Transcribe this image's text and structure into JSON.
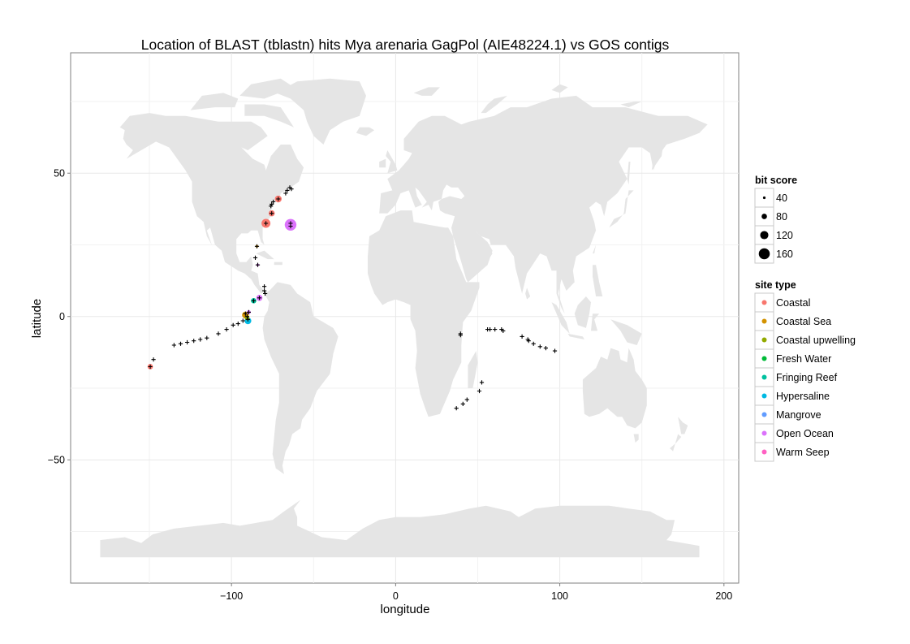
{
  "chart_data": {
    "type": "scatter",
    "title": "Location of BLAST (tblastn) hits Mya arenaria GagPol (AIE48224.1) vs GOS contigs",
    "xlabel": "longitude",
    "ylabel": "latitude",
    "xlim": [
      -198,
      209
    ],
    "ylim": [
      -93,
      92
    ],
    "x_ticks": [
      -100,
      0,
      100,
      200
    ],
    "x_tick_labels": [
      "−100",
      "0",
      "100",
      "200"
    ],
    "y_ticks": [
      -50,
      0,
      50
    ],
    "y_tick_labels": [
      "−50",
      "0",
      "50"
    ],
    "grid": true,
    "background_map": "world",
    "legend_position": "right",
    "size_legend": {
      "title": "bit score",
      "values": [
        40,
        80,
        120,
        160
      ]
    },
    "color_legend": {
      "title": "site type",
      "entries": [
        {
          "label": "Coastal",
          "color": "#F8766D"
        },
        {
          "label": "Coastal Sea",
          "color": "#D39200"
        },
        {
          "label": "Coastal upwelling",
          "color": "#93AA00"
        },
        {
          "label": "Fresh Water",
          "color": "#00BA38"
        },
        {
          "label": "Fringing Reef",
          "color": "#00C19F"
        },
        {
          "label": "Hypersaline",
          "color": "#00B9E3"
        },
        {
          "label": "Mangrove",
          "color": "#619CFF"
        },
        {
          "label": "Open Ocean",
          "color": "#DB72FB"
        },
        {
          "label": "Warm Seep",
          "color": "#FF61C3"
        }
      ]
    },
    "hits": [
      {
        "lon": -79,
        "lat": 32.5,
        "site_type": "Coastal",
        "bit_score": 130
      },
      {
        "lon": -75.5,
        "lat": 36,
        "site_type": "Coastal",
        "bit_score": 90
      },
      {
        "lon": -71.5,
        "lat": 41,
        "site_type": "Coastal",
        "bit_score": 100
      },
      {
        "lon": -149.5,
        "lat": -17.5,
        "site_type": "Coastal",
        "bit_score": 80
      },
      {
        "lon": -64,
        "lat": 32,
        "site_type": "Open Ocean",
        "bit_score": 170
      },
      {
        "lon": -83,
        "lat": 6.5,
        "site_type": "Open Ocean",
        "bit_score": 90
      },
      {
        "lon": -84.5,
        "lat": 24.5,
        "site_type": "Coastal Sea",
        "bit_score": 40
      },
      {
        "lon": -91.5,
        "lat": 0.5,
        "site_type": "Coastal Sea",
        "bit_score": 100
      },
      {
        "lon": -90.5,
        "lat": -0.5,
        "site_type": "Coastal upwelling",
        "bit_score": 70
      },
      {
        "lon": -86.5,
        "lat": 5.5,
        "site_type": "Fringing Reef",
        "bit_score": 80
      },
      {
        "lon": -90,
        "lat": -1.5,
        "site_type": "Hypersaline",
        "bit_score": 100
      },
      {
        "lon": -89.5,
        "lat": 1.5,
        "site_type": "Open Ocean",
        "bit_score": 60
      },
      {
        "lon": -84,
        "lat": 18,
        "site_type": "Open Ocean",
        "bit_score": 40
      }
    ],
    "plus_markers": [
      [
        -76,
        38.5
      ],
      [
        -75.5,
        39.2
      ],
      [
        -74.5,
        40
      ],
      [
        -67,
        43
      ],
      [
        -66,
        44
      ],
      [
        -64.5,
        45
      ],
      [
        -63.5,
        44.5
      ],
      [
        -71.5,
        41
      ],
      [
        -79,
        32.5
      ],
      [
        -75.5,
        36
      ],
      [
        -64,
        31.5
      ],
      [
        -64,
        32.5
      ],
      [
        -84.5,
        24.5
      ],
      [
        -85.5,
        20.5
      ],
      [
        -84,
        18
      ],
      [
        -80,
        10.5
      ],
      [
        -80,
        9
      ],
      [
        -79.5,
        8
      ],
      [
        -83,
        6.5
      ],
      [
        -86.5,
        5.5
      ],
      [
        -89.5,
        1.5
      ],
      [
        -91.5,
        1
      ],
      [
        -90.5,
        0
      ],
      [
        -90,
        -1
      ],
      [
        -93,
        -1.5
      ],
      [
        -96,
        -2.5
      ],
      [
        -99,
        -3
      ],
      [
        -103,
        -4.5
      ],
      [
        -108,
        -6
      ],
      [
        -115,
        -7.5
      ],
      [
        -119,
        -8
      ],
      [
        -123,
        -8.5
      ],
      [
        -127,
        -9
      ],
      [
        -131,
        -9.5
      ],
      [
        -135,
        -10
      ],
      [
        -147.5,
        -15
      ],
      [
        -149.5,
        -17.5
      ],
      [
        39.5,
        -6
      ],
      [
        39.5,
        -6.5
      ],
      [
        56,
        -4.5
      ],
      [
        57.5,
        -4.5
      ],
      [
        60.5,
        -4.5
      ],
      [
        64.5,
        -4.5
      ],
      [
        65.5,
        -5
      ],
      [
        77,
        -7
      ],
      [
        80.5,
        -8
      ],
      [
        81,
        -8.5
      ],
      [
        84,
        -9.5
      ],
      [
        88,
        -10.5
      ],
      [
        91.5,
        -11
      ],
      [
        97,
        -12
      ],
      [
        52.5,
        -23
      ],
      [
        51,
        -26
      ],
      [
        43.5,
        -29
      ],
      [
        41,
        -30.5
      ],
      [
        37,
        -32
      ]
    ]
  }
}
